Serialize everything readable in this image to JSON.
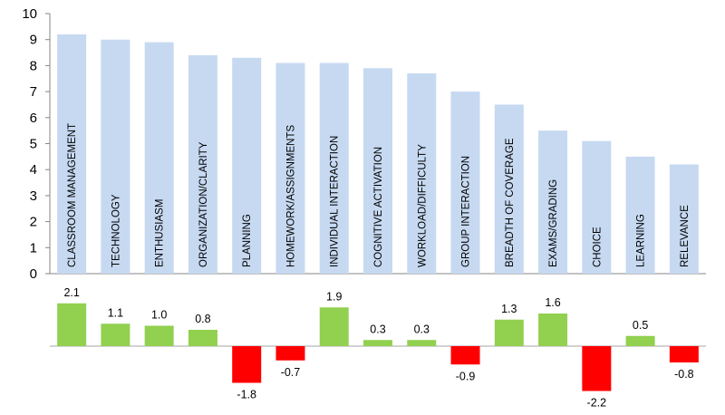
{
  "chart_data": [
    {
      "type": "bar",
      "categories": [
        "CLASSROOM MANAGEMENT",
        "TECHNOLOGY",
        "ENTHUSIASM",
        "ORGANIZATION/CLARITY",
        "PLANNING",
        "HOMEWORK/ASSIGNMENTS",
        "INDIVIDUAL INTERACTION",
        "COGNITIVE ACTIVATION",
        "WORKLOAD/DIFFICULTY",
        "GROUP INTERACTION",
        "BREADTH OF COVERAGE",
        "EXAMS/GRADING",
        "CHOICE",
        "LEARNING",
        "RELEVANCE"
      ],
      "values": [
        9.2,
        9.0,
        8.9,
        8.4,
        8.3,
        8.1,
        8.1,
        7.9,
        7.7,
        7.0,
        6.5,
        5.5,
        5.1,
        4.5,
        4.2
      ],
      "ylim": [
        0,
        10
      ],
      "yticks": [
        "0",
        "1",
        "2",
        "3",
        "4",
        "5",
        "6",
        "7",
        "8",
        "9",
        "10"
      ],
      "bar_color": "#c6d9f1",
      "grid": false
    },
    {
      "type": "bar",
      "values": [
        2.1,
        1.1,
        1.0,
        0.8,
        -1.8,
        -0.7,
        1.9,
        0.3,
        0.3,
        -0.9,
        1.3,
        1.6,
        -2.2,
        0.5,
        -0.8
      ],
      "labels": [
        "2.1",
        "1.1",
        "1.0",
        "0.8",
        "-1.8",
        "-0.7",
        "1.9",
        "0.3",
        "0.3",
        "-0.9",
        "1.3",
        "1.6",
        "-2.2",
        "0.5",
        "-0.8"
      ],
      "positive_color": "#92d050",
      "negative_color": "#ff0000",
      "ylim": [
        -2.5,
        2.5
      ]
    }
  ]
}
